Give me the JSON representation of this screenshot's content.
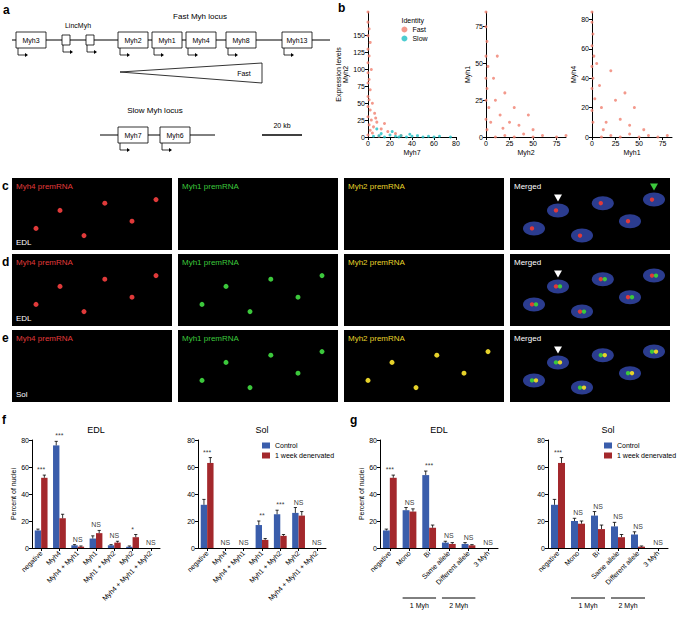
{
  "diagram": {
    "panel": "a",
    "genes": [
      "Myh3",
      "Myh2",
      "Myh1",
      "Myh4",
      "Myh8",
      "Myh13"
    ],
    "lnc": "LincMyh",
    "fast_locus": "Fast Myh locus",
    "fast_gradient": "Fast",
    "slow_locus": "Slow Myh locus",
    "slow_genes": [
      "Myh7",
      "Myh6"
    ],
    "scale_bar": "20 kb"
  },
  "images": {
    "panels": [
      {
        "panel": "c",
        "muscle": "EDL"
      },
      {
        "panel": "d",
        "muscle": "EDL"
      },
      {
        "panel": "e",
        "muscle": "Sol"
      }
    ],
    "channels": [
      {
        "name": "Myh4 premRNA",
        "color": "#e03a3a"
      },
      {
        "name": "Myh1 premRNA",
        "color": "#3cc83c"
      },
      {
        "name": "Myh2 premRNA",
        "color": "#e6d22a"
      },
      {
        "name": "Merged"
      }
    ]
  },
  "chart_data": [
    {
      "type": "scatter",
      "panel": "b",
      "xlabel": "Myh7",
      "ylabel": [
        "Expression levels",
        "Myh2"
      ],
      "xlim": [
        0,
        80
      ],
      "xticks": [
        0,
        20,
        40,
        60,
        80
      ],
      "ylim": [
        0,
        185
      ],
      "yticks": [
        0,
        25,
        50,
        75,
        100,
        125,
        150
      ],
      "legend": "top",
      "legend_title": "Identity",
      "series": [
        {
          "name": "Fast",
          "color": "#f07f6f",
          "values": [
            [
              0,
              185
            ],
            [
              0,
              170
            ],
            [
              1,
              160
            ],
            [
              0,
              150
            ],
            [
              2,
              140
            ],
            [
              0,
              130
            ],
            [
              1,
              120
            ],
            [
              0,
              110
            ],
            [
              3,
              100
            ],
            [
              0,
              95
            ],
            [
              1,
              85
            ],
            [
              0,
              80
            ],
            [
              2,
              70
            ],
            [
              0,
              60
            ],
            [
              1,
              55
            ],
            [
              4,
              50
            ],
            [
              0,
              45
            ],
            [
              2,
              40
            ],
            [
              6,
              35
            ],
            [
              0,
              30
            ],
            [
              3,
              25
            ],
            [
              8,
              22
            ],
            [
              1,
              18
            ],
            [
              5,
              15
            ],
            [
              12,
              12
            ],
            [
              2,
              10
            ],
            [
              18,
              8
            ],
            [
              4,
              6
            ],
            [
              25,
              5
            ],
            [
              0,
              3
            ],
            [
              30,
              2
            ],
            [
              10,
              1
            ],
            [
              7,
              28
            ],
            [
              15,
              20
            ]
          ]
        },
        {
          "name": "Slow",
          "color": "#1fbfc4",
          "values": [
            [
              5,
              1
            ],
            [
              10,
              2
            ],
            [
              15,
              0
            ],
            [
              20,
              3
            ],
            [
              25,
              1
            ],
            [
              30,
              2
            ],
            [
              35,
              0
            ],
            [
              40,
              1
            ],
            [
              45,
              2
            ],
            [
              50,
              0
            ],
            [
              55,
              1
            ],
            [
              60,
              0
            ],
            [
              65,
              1
            ],
            [
              75,
              0
            ],
            [
              22,
              8
            ],
            [
              12,
              5
            ],
            [
              38,
              4
            ],
            [
              8,
              12
            ],
            [
              28,
              0
            ]
          ]
        }
      ]
    },
    {
      "type": "scatter",
      "xlabel": "Myh2",
      "ylabel": [
        "Myh1"
      ],
      "xlim": [
        0,
        85
      ],
      "xticks": [
        0,
        25,
        50,
        75
      ],
      "ylim": [
        0,
        85
      ],
      "yticks": [
        0,
        25,
        50,
        75
      ],
      "series": [
        {
          "color": "#f07f6f",
          "values": [
            [
              0,
              85
            ],
            [
              0,
              75
            ],
            [
              1,
              65
            ],
            [
              0,
              55
            ],
            [
              2,
              48
            ],
            [
              0,
              40
            ],
            [
              1,
              33
            ],
            [
              0,
              25
            ],
            [
              3,
              20
            ],
            [
              0,
              12
            ],
            [
              1,
              5
            ],
            [
              10,
              0
            ],
            [
              20,
              1
            ],
            [
              30,
              0
            ],
            [
              40,
              2
            ],
            [
              50,
              0
            ],
            [
              60,
              1
            ],
            [
              75,
              0
            ],
            [
              85,
              1
            ],
            [
              10,
              25
            ],
            [
              15,
              15
            ],
            [
              20,
              30
            ],
            [
              25,
              10
            ],
            [
              30,
              20
            ],
            [
              8,
              40
            ],
            [
              35,
              8
            ],
            [
              45,
              15
            ],
            [
              12,
              55
            ],
            [
              50,
              5
            ],
            [
              5,
              10
            ],
            [
              18,
              6
            ]
          ]
        }
      ]
    },
    {
      "type": "scatter",
      "xlabel": "Myh1",
      "ylabel": [
        "Myh4"
      ],
      "xlim": [
        0,
        85
      ],
      "xticks": [
        0,
        25,
        50,
        75
      ],
      "ylim": [
        0,
        85
      ],
      "yticks": [
        0,
        20,
        40,
        60,
        80
      ],
      "series": [
        {
          "color": "#f07f6f",
          "values": [
            [
              0,
              85
            ],
            [
              0,
              78
            ],
            [
              1,
              70
            ],
            [
              0,
              62
            ],
            [
              2,
              55
            ],
            [
              0,
              48
            ],
            [
              1,
              40
            ],
            [
              0,
              33
            ],
            [
              3,
              26
            ],
            [
              0,
              18
            ],
            [
              1,
              10
            ],
            [
              10,
              0
            ],
            [
              20,
              1
            ],
            [
              30,
              0
            ],
            [
              40,
              2
            ],
            [
              50,
              0
            ],
            [
              60,
              1
            ],
            [
              70,
              0
            ],
            [
              80,
              1
            ],
            [
              10,
              20
            ],
            [
              15,
              10
            ],
            [
              25,
              25
            ],
            [
              30,
              12
            ],
            [
              8,
              35
            ],
            [
              40,
              8
            ],
            [
              20,
              45
            ],
            [
              5,
              50
            ],
            [
              45,
              20
            ],
            [
              55,
              5
            ],
            [
              35,
              30
            ],
            [
              12,
              5
            ]
          ]
        }
      ]
    },
    {
      "type": "bar",
      "panel": "f",
      "title": "EDL",
      "ylabel": "Percent of nuclei",
      "categories": [
        "negative",
        "Myh4",
        "Myh4 + Myh1",
        "Myh1",
        "Myh1 + Myh2",
        "Myh2",
        "Myh4 + Myh1 + Myh2"
      ],
      "ylim": [
        0,
        80
      ],
      "yticks": [
        0,
        20,
        40,
        60,
        80
      ],
      "significance": [
        "***",
        "***",
        "NS",
        "NS",
        "NS",
        "*",
        "NS"
      ],
      "series": [
        {
          "name": "Control",
          "color": "#3a5dab",
          "values": [
            13,
            76,
            2,
            7,
            2,
            1,
            0
          ],
          "errors": [
            1,
            3,
            0.5,
            2,
            0.5,
            0.5,
            0
          ]
        },
        {
          "name": "1 week denervated",
          "color": "#a3282c",
          "values": [
            52,
            22,
            1,
            11,
            4,
            8,
            0
          ],
          "errors": [
            2,
            3,
            0.5,
            2,
            1,
            2,
            0
          ]
        }
      ]
    },
    {
      "type": "bar",
      "title": "Sol",
      "legend": "top right",
      "categories": [
        "negative",
        "Myh4",
        "Myh4 + Myh1",
        "Myh1",
        "Myh1 + Myh2",
        "Myh2",
        "Myh4 + Myh1 + Myh2"
      ],
      "ylim": [
        0,
        80
      ],
      "yticks": [
        0,
        20,
        40,
        60,
        80
      ],
      "significance": [
        "***",
        "NS",
        "NS",
        "**",
        "***",
        "NS",
        "NS"
      ],
      "series": [
        {
          "name": "Control",
          "color": "#3a5dab",
          "values": [
            32,
            0,
            0,
            17,
            25,
            26,
            0
          ],
          "errors": [
            4,
            0,
            0,
            3,
            3,
            4,
            0
          ]
        },
        {
          "name": "1 week denervated",
          "color": "#a3282c",
          "values": [
            63,
            0,
            0,
            6,
            9,
            24,
            0
          ],
          "errors": [
            4,
            0,
            0,
            1,
            1,
            3,
            0
          ]
        }
      ]
    },
    {
      "type": "bar",
      "panel": "g",
      "title": "EDL",
      "ylabel": "Percent of nuclei",
      "categories": [
        "negative",
        "Mono",
        "Bi",
        "Same allele",
        "Different allele",
        "3 Myh"
      ],
      "groups": [
        {
          "label": "1 Myh",
          "categories": [
            "Mono",
            "Bi"
          ]
        },
        {
          "label": "2 Myh",
          "categories": [
            "Same allele",
            "Different allele"
          ]
        }
      ],
      "ylim": [
        0,
        80
      ],
      "yticks": [
        0,
        20,
        40,
        60,
        80
      ],
      "significance": [
        "***",
        "NS",
        "***",
        "NS",
        "NS",
        "NS"
      ],
      "series": [
        {
          "name": "Control",
          "color": "#3a5dab",
          "values": [
            13,
            28,
            54,
            4,
            3,
            0
          ],
          "errors": [
            1,
            2,
            3,
            1,
            1,
            0
          ]
        },
        {
          "name": "1 week denervated",
          "color": "#a3282c",
          "values": [
            52,
            27,
            15,
            3,
            2,
            0
          ],
          "errors": [
            2,
            2,
            2,
            1,
            0.5,
            0
          ]
        }
      ]
    },
    {
      "type": "bar",
      "title": "Sol",
      "legend": "top right",
      "categories": [
        "negative",
        "Mono",
        "Bi",
        "Same allele",
        "Different allele",
        "3 Myh"
      ],
      "groups": [
        {
          "label": "1 Myh",
          "categories": [
            "Mono",
            "Bi"
          ]
        },
        {
          "label": "2 Myh",
          "categories": [
            "Same allele",
            "Different allele"
          ]
        }
      ],
      "ylim": [
        0,
        80
      ],
      "yticks": [
        0,
        20,
        40,
        60,
        80
      ],
      "significance": [
        "***",
        "NS",
        "NS",
        "NS",
        "NS",
        "NS"
      ],
      "series": [
        {
          "name": "Control",
          "color": "#3a5dab",
          "values": [
            32,
            20,
            24,
            16,
            10,
            0
          ],
          "errors": [
            4,
            2,
            3,
            3,
            2,
            0
          ]
        },
        {
          "name": "1 week denervated",
          "color": "#a3282c",
          "values": [
            63,
            18,
            14,
            8,
            1,
            0
          ],
          "errors": [
            4,
            2,
            3,
            2,
            0.5,
            0
          ]
        }
      ]
    }
  ]
}
